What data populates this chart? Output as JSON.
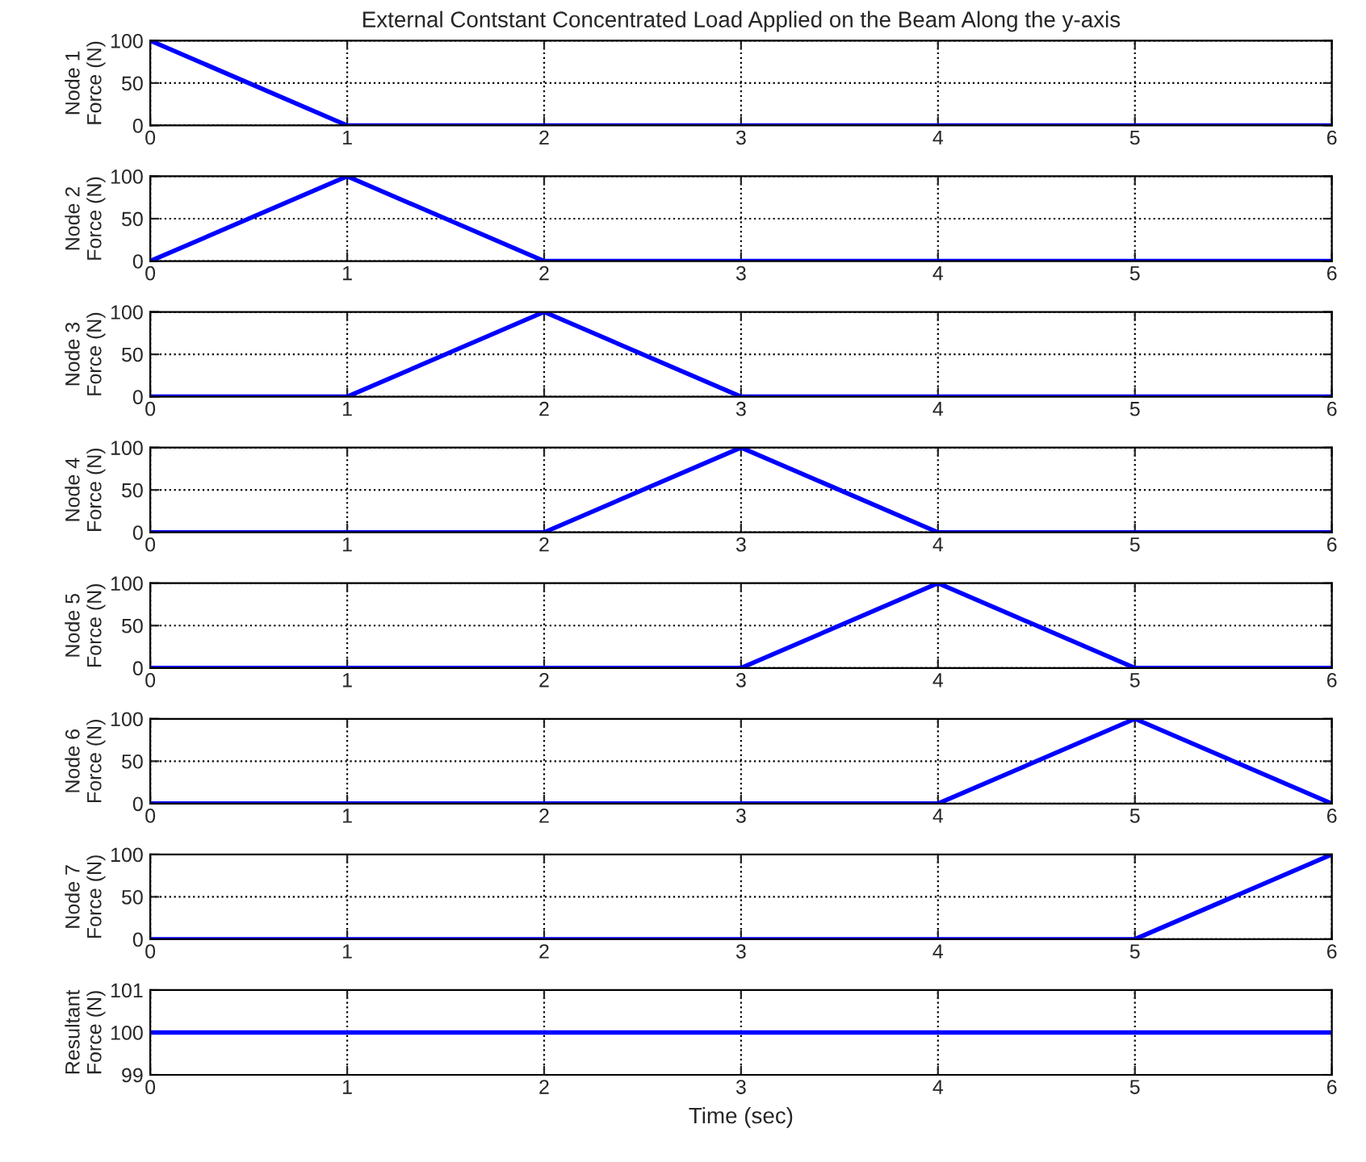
{
  "chart_data": [
    {
      "type": "line",
      "title": "External Contstant Concentrated Load Applied on the Beam Along the y-axis",
      "ylabel": "Node 1\nForce (N)",
      "x": [
        0,
        1,
        2,
        3,
        4,
        5,
        6
      ],
      "series": [
        {
          "color": "#0000ff",
          "values": [
            100,
            0,
            0,
            0,
            0,
            0,
            0
          ]
        }
      ],
      "xlim": [
        0,
        6
      ],
      "xticks": [
        0,
        1,
        2,
        3,
        4,
        5,
        6
      ],
      "ylim": [
        0,
        100
      ],
      "yticks": [
        0,
        50,
        100
      ],
      "grid": true,
      "line_style": "solid"
    },
    {
      "type": "line",
      "ylabel": "Node 2\nForce (N)",
      "x": [
        0,
        1,
        2,
        3,
        4,
        5,
        6
      ],
      "series": [
        {
          "color": "#0000ff",
          "values": [
            0,
            100,
            0,
            0,
            0,
            0,
            0
          ]
        }
      ],
      "xlim": [
        0,
        6
      ],
      "xticks": [
        0,
        1,
        2,
        3,
        4,
        5,
        6
      ],
      "ylim": [
        0,
        100
      ],
      "yticks": [
        0,
        50,
        100
      ],
      "grid": true,
      "line_style": "solid"
    },
    {
      "type": "line",
      "ylabel": "Node 3\nForce (N)",
      "x": [
        0,
        1,
        2,
        3,
        4,
        5,
        6
      ],
      "series": [
        {
          "color": "#0000ff",
          "values": [
            0,
            0,
            100,
            0,
            0,
            0,
            0
          ]
        }
      ],
      "xlim": [
        0,
        6
      ],
      "xticks": [
        0,
        1,
        2,
        3,
        4,
        5,
        6
      ],
      "ylim": [
        0,
        100
      ],
      "yticks": [
        0,
        50,
        100
      ],
      "grid": true,
      "line_style": "solid"
    },
    {
      "type": "line",
      "ylabel": "Node 4\nForce (N)",
      "x": [
        0,
        1,
        2,
        3,
        4,
        5,
        6
      ],
      "series": [
        {
          "color": "#0000ff",
          "values": [
            0,
            0,
            0,
            100,
            0,
            0,
            0
          ]
        }
      ],
      "xlim": [
        0,
        6
      ],
      "xticks": [
        0,
        1,
        2,
        3,
        4,
        5,
        6
      ],
      "ylim": [
        0,
        100
      ],
      "yticks": [
        0,
        50,
        100
      ],
      "grid": true,
      "line_style": "solid"
    },
    {
      "type": "line",
      "ylabel": "Node 5\nForce (N)",
      "x": [
        0,
        1,
        2,
        3,
        4,
        5,
        6
      ],
      "series": [
        {
          "color": "#0000ff",
          "values": [
            0,
            0,
            0,
            0,
            100,
            0,
            0
          ]
        }
      ],
      "xlim": [
        0,
        6
      ],
      "xticks": [
        0,
        1,
        2,
        3,
        4,
        5,
        6
      ],
      "ylim": [
        0,
        100
      ],
      "yticks": [
        0,
        50,
        100
      ],
      "grid": true,
      "line_style": "solid"
    },
    {
      "type": "line",
      "ylabel": "Node 6\nForce (N)",
      "x": [
        0,
        1,
        2,
        3,
        4,
        5,
        6
      ],
      "series": [
        {
          "color": "#0000ff",
          "values": [
            0,
            0,
            0,
            0,
            0,
            100,
            0
          ]
        }
      ],
      "xlim": [
        0,
        6
      ],
      "xticks": [
        0,
        1,
        2,
        3,
        4,
        5,
        6
      ],
      "ylim": [
        0,
        100
      ],
      "yticks": [
        0,
        50,
        100
      ],
      "grid": true,
      "line_style": "solid"
    },
    {
      "type": "line",
      "ylabel": "Node 7\nForce (N)",
      "x": [
        0,
        1,
        2,
        3,
        4,
        5,
        6
      ],
      "series": [
        {
          "color": "#0000ff",
          "values": [
            0,
            0,
            0,
            0,
            0,
            0,
            100
          ]
        }
      ],
      "xlim": [
        0,
        6
      ],
      "xticks": [
        0,
        1,
        2,
        3,
        4,
        5,
        6
      ],
      "ylim": [
        0,
        100
      ],
      "yticks": [
        0,
        50,
        100
      ],
      "grid": true,
      "line_style": "solid"
    },
    {
      "type": "line",
      "ylabel": "Resultant\nForce (N)",
      "xlabel": "Time (sec)",
      "x": [
        0,
        1,
        2,
        3,
        4,
        5,
        6
      ],
      "series": [
        {
          "color": "#0000ff",
          "values": [
            100,
            100,
            100,
            100,
            100,
            100,
            100
          ]
        }
      ],
      "xlim": [
        0,
        6
      ],
      "xticks": [
        0,
        1,
        2,
        3,
        4,
        5,
        6
      ],
      "ylim": [
        99,
        101
      ],
      "yticks": [
        99,
        100,
        101
      ],
      "grid": true,
      "line_style": "solid"
    }
  ]
}
